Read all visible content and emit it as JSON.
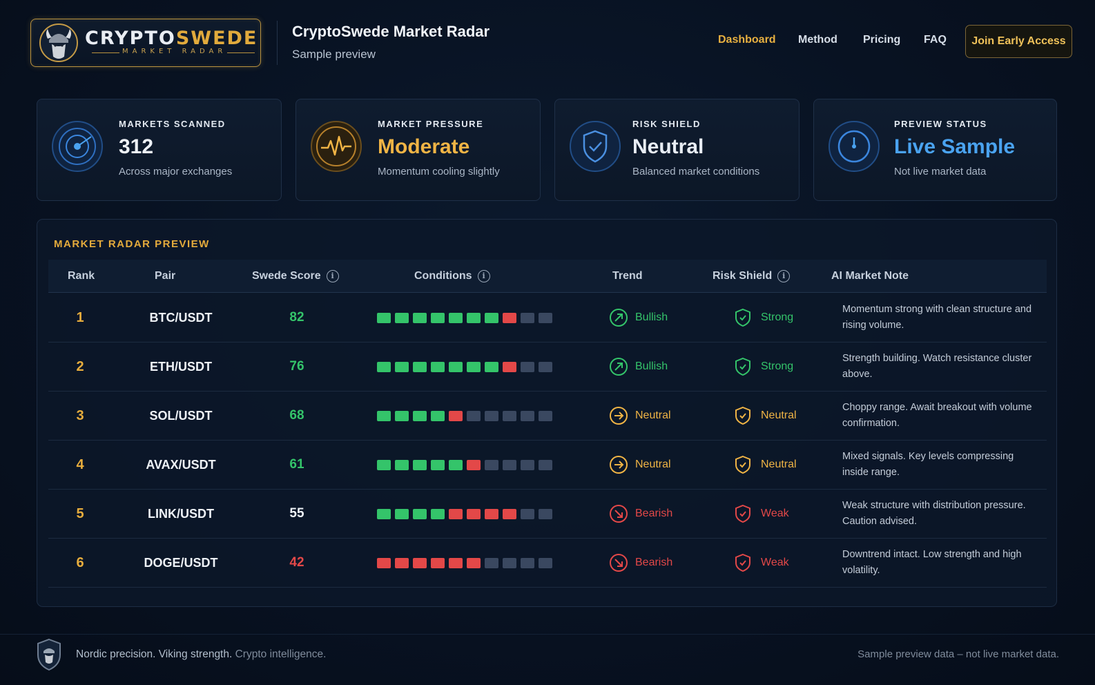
{
  "brand": {
    "word_left": "CRYPTO",
    "word_right": "SWEDE",
    "tagline": "MARKET RADAR"
  },
  "header": {
    "title": "CryptoSwede Market Radar",
    "subtitle": "Sample preview",
    "nav": [
      {
        "label": "Dashboard",
        "active": true
      },
      {
        "label": "Method",
        "active": false
      },
      {
        "label": "Pricing",
        "active": false
      },
      {
        "label": "FAQ",
        "active": false
      }
    ],
    "cta": "Join Early Access"
  },
  "stats": [
    {
      "label": "MARKETS SCANNED",
      "value": "312",
      "desc": "Across major exchanges",
      "icon": "radar-icon",
      "color": "#eef2f7"
    },
    {
      "label": "MARKET PRESSURE",
      "value": "Moderate",
      "desc": "Momentum cooling slightly",
      "icon": "pulse-icon",
      "color": "#f0b445"
    },
    {
      "label": "RISK SHIELD",
      "value": "Neutral",
      "desc": "Balanced market conditions",
      "icon": "shield-check-icon",
      "color": "#e8edf4"
    },
    {
      "label": "PREVIEW STATUS",
      "value": "Live Sample",
      "desc": "Not live market data",
      "icon": "clock-icon",
      "color": "#4aa3f0"
    }
  ],
  "table": {
    "title": "MARKET RADAR PREVIEW",
    "columns": {
      "rank": "Rank",
      "pair": "Pair",
      "score": "Swede Score",
      "conditions": "Conditions",
      "trend": "Trend",
      "risk": "Risk Shield",
      "note": "AI Market Note"
    },
    "rows": [
      {
        "rank": "1",
        "pair": "BTC/USDT",
        "score": "82",
        "score_color": "#34c46a",
        "conditions": [
          "g",
          "g",
          "g",
          "g",
          "g",
          "g",
          "g",
          "r",
          "n",
          "n"
        ],
        "trend": "Bullish",
        "trend_type": "bull",
        "risk": "Strong",
        "risk_type": "strong",
        "note": "Momentum strong with clean structure and rising volume."
      },
      {
        "rank": "2",
        "pair": "ETH/USDT",
        "score": "76",
        "score_color": "#34c46a",
        "conditions": [
          "g",
          "g",
          "g",
          "g",
          "g",
          "g",
          "g",
          "r",
          "n",
          "n"
        ],
        "trend": "Bullish",
        "trend_type": "bull",
        "risk": "Strong",
        "risk_type": "strong",
        "note": "Strength building. Watch resistance cluster above."
      },
      {
        "rank": "3",
        "pair": "SOL/USDT",
        "score": "68",
        "score_color": "#34c46a",
        "conditions": [
          "g",
          "g",
          "g",
          "g",
          "r",
          "n",
          "n",
          "n",
          "n",
          "n"
        ],
        "trend": "Neutral",
        "trend_type": "neutral",
        "risk": "Neutral",
        "risk_type": "neutral",
        "note": "Choppy range. Await breakout with volume confirmation."
      },
      {
        "rank": "4",
        "pair": "AVAX/USDT",
        "score": "61",
        "score_color": "#34c46a",
        "conditions": [
          "g",
          "g",
          "g",
          "g",
          "g",
          "r",
          "n",
          "n",
          "n",
          "n"
        ],
        "trend": "Neutral",
        "trend_type": "neutral",
        "risk": "Neutral",
        "risk_type": "neutral",
        "note": "Mixed signals. Key levels compressing inside range."
      },
      {
        "rank": "5",
        "pair": "LINK/USDT",
        "score": "55",
        "score_color": "#eef2f7",
        "conditions": [
          "g",
          "g",
          "g",
          "g",
          "r",
          "r",
          "r",
          "r",
          "n",
          "n"
        ],
        "trend": "Bearish",
        "trend_type": "bear",
        "risk": "Weak",
        "risk_type": "weak",
        "note": "Weak structure with distribution pressure. Caution advised."
      },
      {
        "rank": "6",
        "pair": "DOGE/USDT",
        "score": "42",
        "score_color": "#e34848",
        "conditions": [
          "r",
          "r",
          "r",
          "r",
          "r",
          "r",
          "n",
          "n",
          "n",
          "n"
        ],
        "trend": "Bearish",
        "trend_type": "bear",
        "risk": "Weak",
        "risk_type": "weak",
        "note": "Downtrend intact. Low strength and high volatility."
      }
    ]
  },
  "footer": {
    "tagline_main": "Nordic precision. Viking strength.",
    "tagline_dim": "Crypto intelligence.",
    "disclaimer": "Sample preview data – not live market data."
  },
  "colors": {
    "accent_gold": "#e7ad3d",
    "green": "#34c46a",
    "red": "#e34848",
    "orange": "#f0b445",
    "blue": "#4aa3f0",
    "neutral_segment": "#3a4860"
  }
}
